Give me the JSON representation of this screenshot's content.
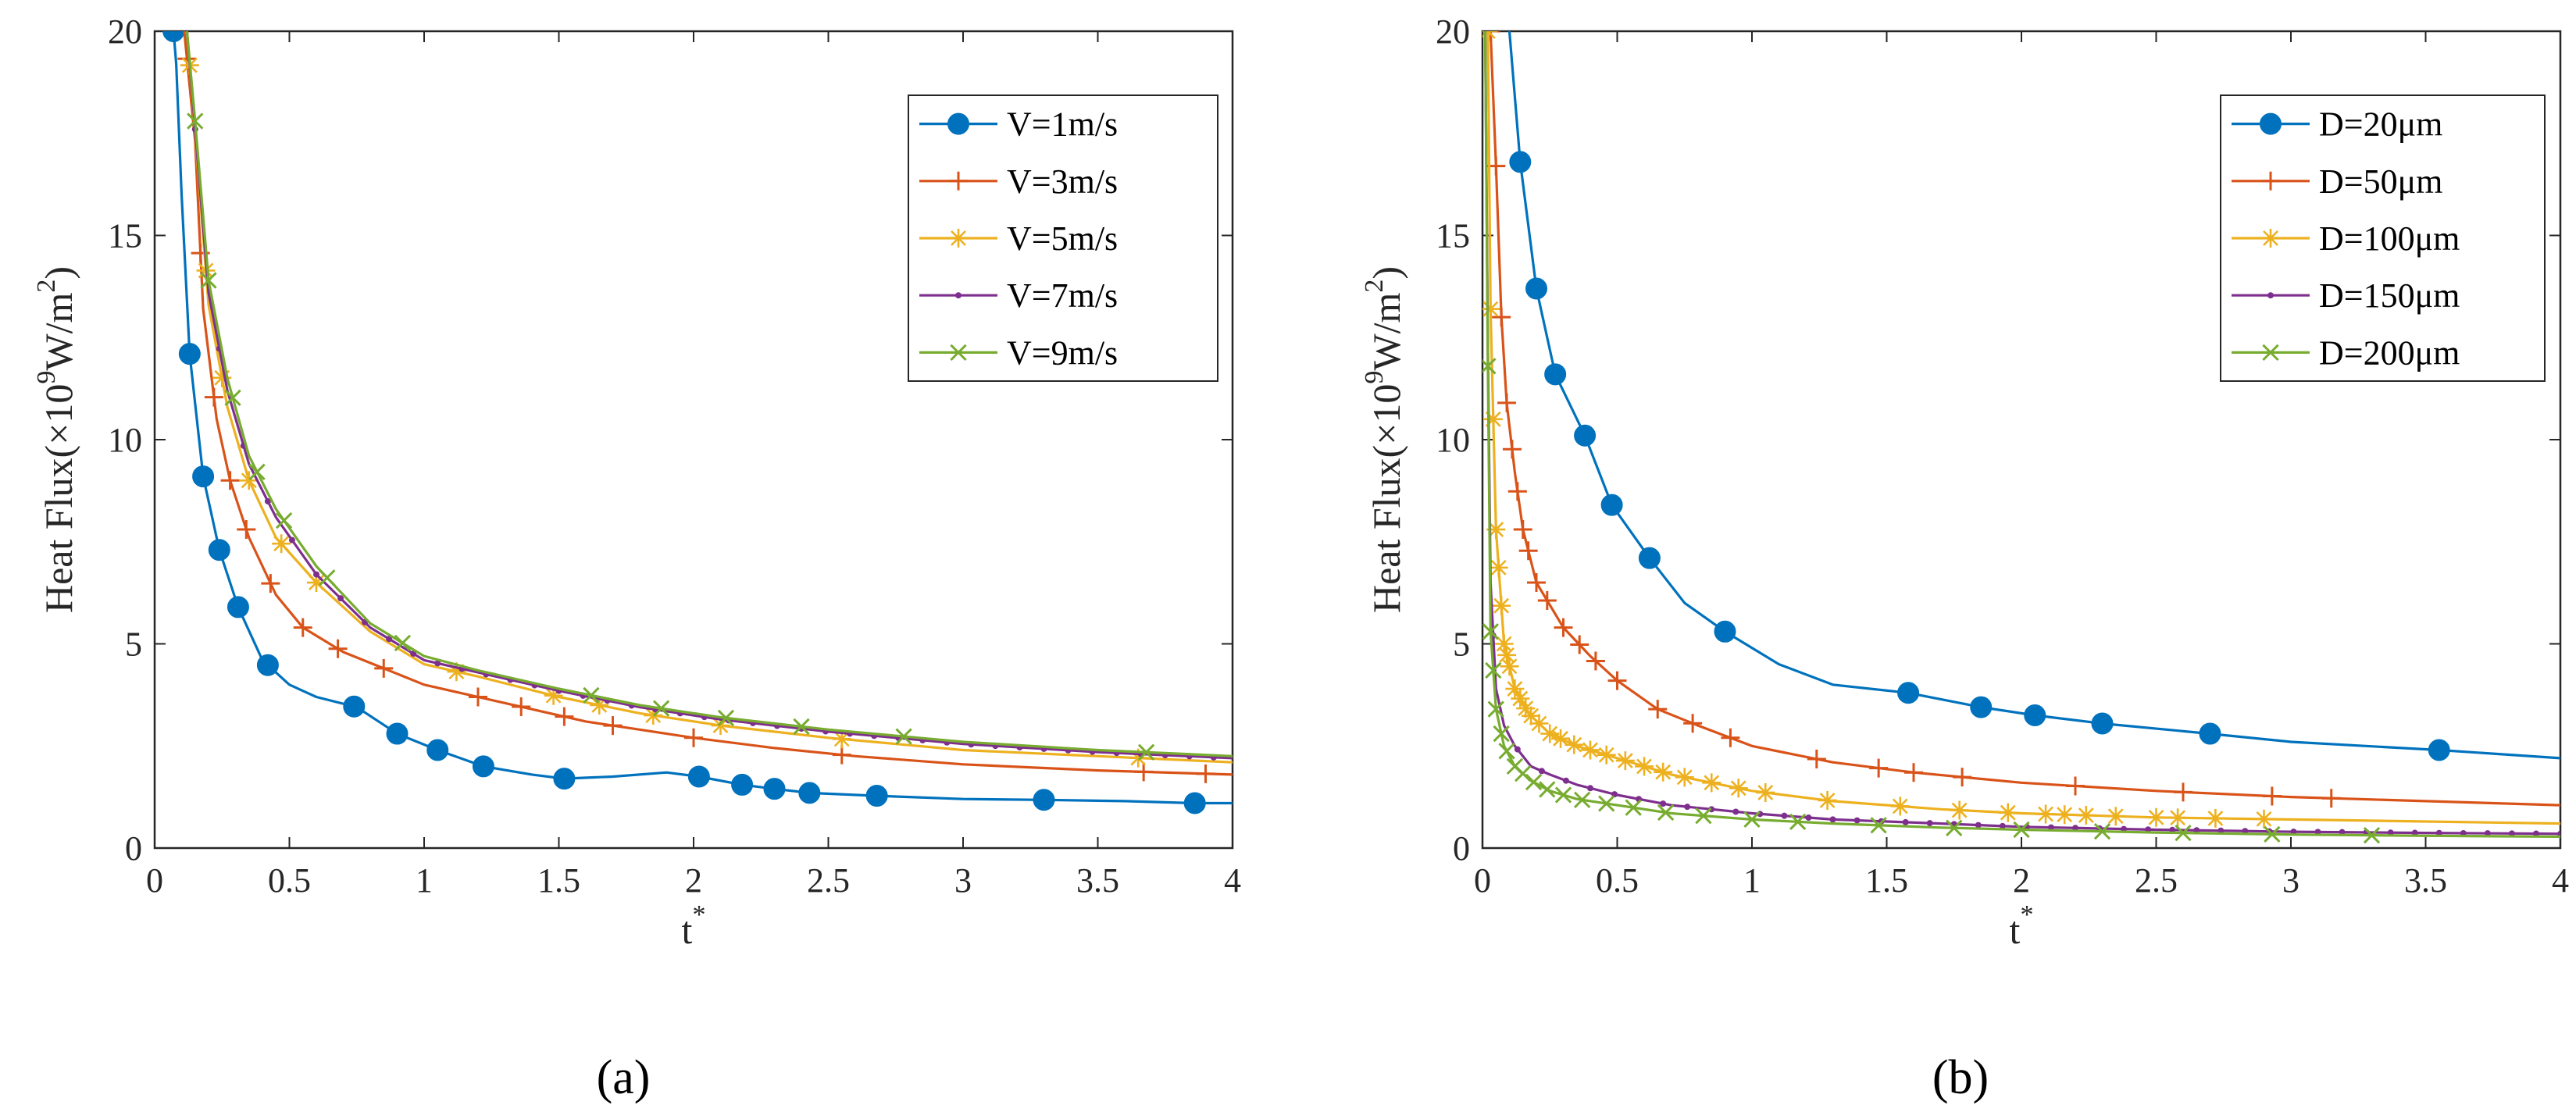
{
  "chart_data": [
    {
      "type": "line",
      "panel_label": "(a)",
      "title": "",
      "xlabel": "t",
      "xlabel_sup": "*",
      "ylabel": "Heat Flux(×10",
      "ylabel_sup1": "9",
      "ylabel_mid": "W/m",
      "ylabel_sup2": "2",
      "ylabel_end": ")",
      "xlim": [
        0,
        4
      ],
      "ylim": [
        0,
        20
      ],
      "xticks": [
        "0",
        "0.5",
        "1",
        "1.5",
        "2",
        "2.5",
        "3",
        "3.5",
        "4"
      ],
      "yticks": [
        "0",
        "5",
        "10",
        "15",
        "20"
      ],
      "legend_position": "top-right",
      "series": [
        {
          "name": "V=1m/s",
          "color": "#0072BD",
          "marker": "circle",
          "x": [
            0.07,
            0.08,
            0.1,
            0.13,
            0.18,
            0.24,
            0.31,
            0.4,
            0.5,
            0.6,
            0.75,
            0.9,
            1.05,
            1.22,
            1.4,
            1.52,
            1.7,
            1.9,
            2.02,
            2.18,
            2.3,
            2.43,
            2.68,
            3.0,
            3.3,
            3.6,
            3.86,
            4.0
          ],
          "y": [
            20,
            19.2,
            16.0,
            12.1,
            9.1,
            7.3,
            5.9,
            4.6,
            4.0,
            3.7,
            3.45,
            2.8,
            2.4,
            2.0,
            1.8,
            1.7,
            1.75,
            1.85,
            1.75,
            1.55,
            1.45,
            1.35,
            1.28,
            1.2,
            1.18,
            1.15,
            1.1,
            1.1
          ],
          "marker_x": [
            0.07,
            0.13,
            0.18,
            0.24,
            0.31,
            0.42,
            0.74,
            0.9,
            1.05,
            1.22,
            1.52,
            2.02,
            2.18,
            2.3,
            2.43,
            2.68,
            3.3,
            3.86
          ]
        },
        {
          "name": "V=3m/s",
          "color": "#D95319",
          "marker": "plus",
          "x": [
            0.11,
            0.15,
            0.18,
            0.23,
            0.28,
            0.35,
            0.45,
            0.55,
            0.7,
            0.85,
            1.0,
            1.2,
            1.4,
            1.6,
            1.8,
            2.0,
            2.3,
            2.6,
            3.0,
            3.5,
            4.0
          ],
          "y": [
            20,
            17.3,
            13.2,
            10.5,
            9.0,
            7.6,
            6.2,
            5.4,
            4.8,
            4.4,
            4.0,
            3.7,
            3.4,
            3.1,
            2.9,
            2.7,
            2.45,
            2.25,
            2.05,
            1.9,
            1.8
          ],
          "marker_x": [
            0.12,
            0.17,
            0.22,
            0.28,
            0.34,
            0.43,
            0.55,
            0.68,
            0.85,
            1.2,
            1.36,
            1.52,
            1.7,
            2.0,
            2.55,
            3.67,
            3.9
          ]
        },
        {
          "name": "V=5m/s",
          "color": "#EDB120",
          "marker": "asterisk",
          "x": [
            0.12,
            0.15,
            0.2,
            0.27,
            0.35,
            0.45,
            0.6,
            0.8,
            1.0,
            1.2,
            1.5,
            1.8,
            2.1,
            2.5,
            3.0,
            3.5,
            4.0
          ],
          "y": [
            20,
            17.5,
            13.3,
            10.8,
            9.0,
            7.6,
            6.5,
            5.3,
            4.5,
            4.2,
            3.7,
            3.3,
            3.0,
            2.7,
            2.4,
            2.25,
            2.1
          ],
          "marker_x": [
            0.13,
            0.19,
            0.25,
            0.35,
            0.47,
            0.6,
            1.12,
            1.48,
            1.65,
            1.85,
            2.1,
            2.55,
            3.65
          ]
        },
        {
          "name": "V=7m/s",
          "color": "#7E2F8E",
          "marker": "dot",
          "x": [
            0.12,
            0.15,
            0.2,
            0.27,
            0.35,
            0.45,
            0.6,
            0.8,
            1.0,
            1.2,
            1.5,
            1.8,
            2.1,
            2.5,
            3.0,
            3.5,
            4.0
          ],
          "y": [
            20,
            17.6,
            13.6,
            11.2,
            9.4,
            8.1,
            6.7,
            5.4,
            4.6,
            4.3,
            3.85,
            3.45,
            3.15,
            2.85,
            2.55,
            2.35,
            2.2
          ],
          "marker_x": []
        },
        {
          "name": "V=9m/s",
          "color": "#77AC30",
          "marker": "x",
          "x": [
            0.12,
            0.15,
            0.2,
            0.27,
            0.35,
            0.45,
            0.6,
            0.8,
            1.0,
            1.2,
            1.5,
            1.8,
            2.1,
            2.5,
            3.0,
            3.5,
            4.0
          ],
          "y": [
            20,
            17.8,
            13.9,
            11.5,
            9.6,
            8.3,
            6.9,
            5.5,
            4.7,
            4.35,
            3.9,
            3.5,
            3.2,
            2.9,
            2.6,
            2.4,
            2.25
          ],
          "marker_x": [
            0.15,
            0.2,
            0.29,
            0.38,
            0.48,
            0.64,
            0.92,
            1.62,
            1.88,
            2.12,
            2.4,
            2.78,
            3.68
          ]
        }
      ]
    },
    {
      "type": "line",
      "panel_label": "(b)",
      "title": "",
      "xlabel": "t",
      "xlabel_sup": "*",
      "ylabel": "Heat Flux(×10",
      "ylabel_sup1": "9",
      "ylabel_mid": "W/m",
      "ylabel_sup2": "2",
      "ylabel_end": ")",
      "xlim": [
        0,
        4
      ],
      "ylim": [
        0,
        20
      ],
      "xticks": [
        "0",
        "0.5",
        "1",
        "1.5",
        "2",
        "2.5",
        "3",
        "3.5",
        "4"
      ],
      "yticks": [
        "0",
        "5",
        "10",
        "15",
        "20"
      ],
      "legend_position": "top-right",
      "series": [
        {
          "name": "D=20μm",
          "color": "#0072BD",
          "marker": "circle",
          "x": [
            0.1,
            0.14,
            0.2,
            0.27,
            0.38,
            0.48,
            0.62,
            0.75,
            0.9,
            1.1,
            1.3,
            1.58,
            1.85,
            2.05,
            2.3,
            2.7,
            3.0,
            3.55,
            4.0
          ],
          "y": [
            20,
            16.8,
            13.7,
            11.6,
            10.1,
            8.4,
            7.1,
            6.0,
            5.3,
            4.5,
            4.0,
            3.8,
            3.45,
            3.25,
            3.05,
            2.8,
            2.6,
            2.4,
            2.2
          ],
          "marker_x": [
            0.14,
            0.2,
            0.27,
            0.38,
            0.48,
            0.62,
            0.9,
            1.58,
            1.85,
            2.05,
            2.3,
            2.7,
            3.55
          ]
        },
        {
          "name": "D=50μm",
          "color": "#D95319",
          "marker": "plus",
          "x": [
            0.03,
            0.05,
            0.07,
            0.09,
            0.12,
            0.15,
            0.2,
            0.3,
            0.4,
            0.5,
            0.65,
            0.8,
            1.0,
            1.3,
            1.6,
            2.0,
            2.5,
            3.0,
            3.5,
            4.0
          ],
          "y": [
            20,
            16.7,
            13.0,
            10.9,
            9.2,
            7.8,
            6.5,
            5.4,
            4.7,
            4.1,
            3.4,
            3.0,
            2.5,
            2.1,
            1.85,
            1.6,
            1.4,
            1.25,
            1.15,
            1.05
          ],
          "marker_x": [
            0.03,
            0.05,
            0.07,
            0.09,
            0.11,
            0.13,
            0.15,
            0.17,
            0.2,
            0.24,
            0.3,
            0.36,
            0.42,
            0.5,
            0.65,
            0.78,
            0.92,
            1.24,
            1.47,
            1.6,
            1.78,
            2.2,
            2.6,
            2.93,
            3.15
          ]
        },
        {
          "name": "D=100μm",
          "color": "#EDB120",
          "marker": "asterisk",
          "x": [
            0.02,
            0.03,
            0.05,
            0.08,
            0.12,
            0.17,
            0.25,
            0.35,
            0.5,
            0.7,
            1.0,
            1.3,
            1.7,
            2.0,
            2.5,
            3.0,
            3.5,
            4.0
          ],
          "y": [
            20,
            13.2,
            7.8,
            5.0,
            3.9,
            3.3,
            2.8,
            2.5,
            2.2,
            1.8,
            1.4,
            1.15,
            0.95,
            0.85,
            0.75,
            0.7,
            0.65,
            0.6
          ],
          "marker_x": [
            0.02,
            0.03,
            0.04,
            0.05,
            0.06,
            0.07,
            0.08,
            0.09,
            0.1,
            0.12,
            0.14,
            0.16,
            0.18,
            0.21,
            0.25,
            0.29,
            0.34,
            0.4,
            0.46,
            0.53,
            0.6,
            0.67,
            0.75,
            0.85,
            0.95,
            1.05,
            1.28,
            1.55,
            1.77,
            1.95,
            2.09,
            2.16,
            2.24,
            2.35,
            2.5,
            2.58,
            2.72,
            2.9
          ]
        },
        {
          "name": "D=150μm",
          "color": "#7E2F8E",
          "marker": "dot",
          "x": [
            0.01,
            0.02,
            0.03,
            0.05,
            0.08,
            0.12,
            0.18,
            0.25,
            0.35,
            0.5,
            0.7,
            1.0,
            1.3,
            1.7,
            2.0,
            2.5,
            3.0,
            3.5,
            4.0
          ],
          "y": [
            20,
            12.2,
            6.5,
            3.9,
            3.0,
            2.5,
            2.0,
            1.8,
            1.55,
            1.3,
            1.05,
            0.85,
            0.7,
            0.6,
            0.52,
            0.45,
            0.4,
            0.37,
            0.35
          ],
          "marker_x": []
        },
        {
          "name": "D=200μm",
          "color": "#77AC30",
          "marker": "x",
          "x": [
            0.01,
            0.02,
            0.03,
            0.05,
            0.08,
            0.12,
            0.18,
            0.25,
            0.35,
            0.5,
            0.7,
            1.0,
            1.3,
            1.7,
            2.0,
            2.5,
            3.0,
            3.5,
            4.0
          ],
          "y": [
            20,
            11.8,
            5.3,
            3.4,
            2.5,
            2.0,
            1.65,
            1.4,
            1.2,
            1.05,
            0.85,
            0.7,
            0.6,
            0.5,
            0.45,
            0.38,
            0.33,
            0.3,
            0.28
          ],
          "marker_x": [
            0.02,
            0.03,
            0.04,
            0.05,
            0.07,
            0.09,
            0.12,
            0.15,
            0.19,
            0.24,
            0.3,
            0.37,
            0.46,
            0.56,
            0.68,
            0.82,
            1.0,
            1.17,
            1.47,
            1.75,
            2.0,
            2.3,
            2.6,
            2.93,
            3.3
          ]
        }
      ]
    }
  ]
}
